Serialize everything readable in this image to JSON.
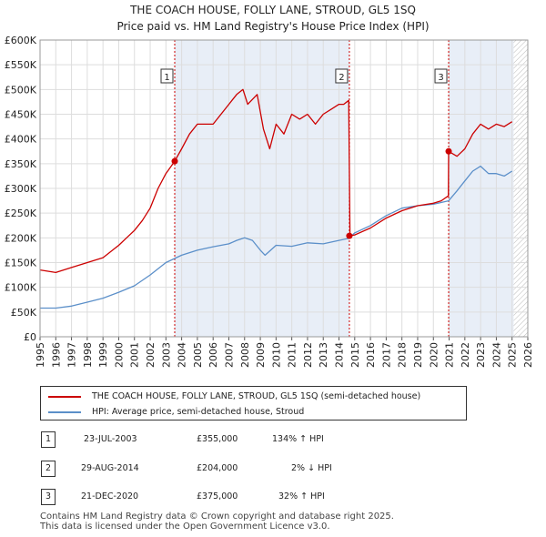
{
  "title_line1": "THE COACH HOUSE, FOLLY LANE, STROUD, GL5 1SQ",
  "title_line2": "Price paid vs. HM Land Registry's House Price Index (HPI)",
  "colors": {
    "property": "#cc0000",
    "hpi": "#5b8fc9",
    "marker": "#cc0000",
    "grid": "#dddddd",
    "band": "#e8eef7"
  },
  "chart_data": {
    "type": "line",
    "title": "THE COACH HOUSE, FOLLY LANE, STROUD, GL5 1SQ — Price paid vs. HM Land Registry's House Price Index (HPI)",
    "xlim": [
      1995,
      2026
    ],
    "ylim": [
      0,
      600000
    ],
    "x_ticks": [
      "1995",
      "1996",
      "1997",
      "1998",
      "1999",
      "2000",
      "2001",
      "2002",
      "2003",
      "2004",
      "2005",
      "2006",
      "2007",
      "2008",
      "2009",
      "2010",
      "2011",
      "2012",
      "2013",
      "2014",
      "2015",
      "2016",
      "2017",
      "2018",
      "2019",
      "2020",
      "2021",
      "2022",
      "2023",
      "2024",
      "2025",
      "2026"
    ],
    "y_ticks": [
      {
        "v": 0,
        "label": "£0"
      },
      {
        "v": 50000,
        "label": "£50K"
      },
      {
        "v": 100000,
        "label": "£100K"
      },
      {
        "v": 150000,
        "label": "£150K"
      },
      {
        "v": 200000,
        "label": "£200K"
      },
      {
        "v": 250000,
        "label": "£250K"
      },
      {
        "v": 300000,
        "label": "£300K"
      },
      {
        "v": 350000,
        "label": "£350K"
      },
      {
        "v": 400000,
        "label": "£400K"
      },
      {
        "v": 450000,
        "label": "£450K"
      },
      {
        "v": 500000,
        "label": "£500K"
      },
      {
        "v": 550000,
        "label": "£550K"
      },
      {
        "v": 600000,
        "label": "£600K"
      }
    ],
    "hatch_from": 2025.1,
    "series": [
      {
        "name": "THE COACH HOUSE, FOLLY LANE, STROUD, GL5 1SQ (semi-detached house)",
        "x": [
          1995,
          1996,
          1997,
          1998,
          1999,
          2000,
          2000.5,
          2001,
          2001.5,
          2002,
          2002.5,
          2003,
          2003.56,
          2004,
          2004.5,
          2005,
          2006,
          2007,
          2007.5,
          2007.9,
          2008.2,
          2008.8,
          2009.2,
          2009.6,
          2010,
          2010.5,
          2011,
          2011.5,
          2012,
          2012.5,
          2013,
          2013.5,
          2014,
          2014.3,
          2014.62,
          2014.7,
          2015,
          2016,
          2017,
          2018,
          2019,
          2020,
          2020.5,
          2020.95,
          2020.97,
          2021.5,
          2022,
          2022.5,
          2023,
          2023.5,
          2024,
          2024.5,
          2025
        ],
        "y": [
          135000,
          130000,
          140000,
          150000,
          160000,
          185000,
          200000,
          215000,
          235000,
          260000,
          300000,
          330000,
          355000,
          380000,
          410000,
          430000,
          430000,
          470000,
          490000,
          500000,
          470000,
          490000,
          420000,
          380000,
          430000,
          410000,
          450000,
          440000,
          450000,
          430000,
          450000,
          460000,
          470000,
          470000,
          478000,
          204000,
          206000,
          220000,
          240000,
          255000,
          265000,
          270000,
          275000,
          285000,
          375000,
          365000,
          380000,
          410000,
          430000,
          420000,
          430000,
          425000,
          435000
        ]
      },
      {
        "name": "HPI: Average price, semi-detached house, Stroud",
        "x": [
          1995,
          1996,
          1997,
          1998,
          1999,
          2000,
          2001,
          2002,
          2003,
          2004,
          2005,
          2006,
          2007,
          2007.5,
          2008,
          2008.5,
          2009,
          2009.3,
          2010,
          2011,
          2012,
          2013,
          2014,
          2014.62,
          2015,
          2016,
          2017,
          2018,
          2019,
          2020,
          2020.97,
          2021.5,
          2022,
          2022.5,
          2023,
          2023.5,
          2024,
          2024.5,
          2025
        ],
        "y": [
          58000,
          58000,
          62000,
          70000,
          78000,
          90000,
          103000,
          125000,
          150000,
          165000,
          175000,
          182000,
          188000,
          195000,
          200000,
          195000,
          175000,
          165000,
          185000,
          183000,
          190000,
          188000,
          195000,
          199000,
          210000,
          225000,
          245000,
          260000,
          265000,
          268000,
          275000,
          295000,
          315000,
          335000,
          345000,
          330000,
          330000,
          325000,
          335000
        ]
      }
    ],
    "sales": [
      {
        "label": "1",
        "x": 2003.56,
        "y": 355000,
        "date": "23-JUL-2003",
        "price": "£355,000",
        "hpi": "134% ↑ HPI"
      },
      {
        "label": "2",
        "x": 2014.66,
        "y": 204000,
        "date": "29-AUG-2014",
        "price": "£204,000",
        "hpi": "2% ↓ HPI"
      },
      {
        "label": "3",
        "x": 2020.97,
        "y": 375000,
        "date": "21-DEC-2020",
        "price": "£375,000",
        "hpi": "32% ↑ HPI"
      }
    ]
  },
  "legend": {
    "property": "THE COACH HOUSE, FOLLY LANE, STROUD, GL5 1SQ (semi-detached house)",
    "hpi": "HPI: Average price, semi-detached house, Stroud"
  },
  "footer": {
    "line1": "Contains HM Land Registry data © Crown copyright and database right 2025.",
    "line2": "This data is licensed under the Open Government Licence v3.0."
  }
}
